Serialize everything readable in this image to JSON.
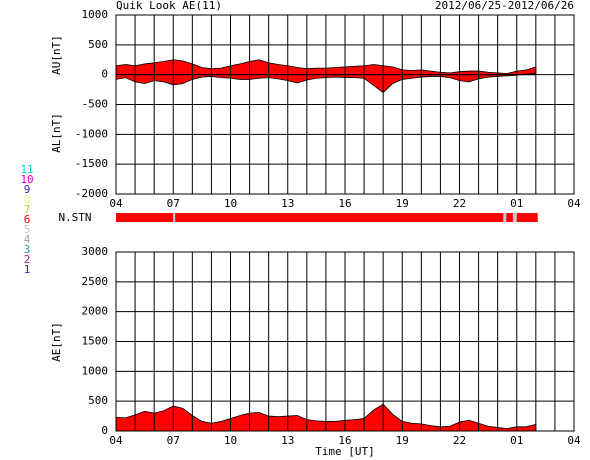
{
  "header": {
    "title": "Quik Look AE(11)",
    "date_range": "2012/06/25-2012/06/26"
  },
  "chart_data": [
    {
      "type": "area",
      "ylabel_upper": "AU[nT]",
      "ylabel_lower": "AL[nT]",
      "x": [
        0,
        0.5,
        1,
        1.5,
        2,
        2.5,
        3,
        3.5,
        4,
        4.5,
        5,
        5.5,
        6,
        6.5,
        7,
        7.5,
        8,
        8.5,
        9,
        9.5,
        10,
        10.5,
        11,
        11.5,
        12,
        12.5,
        13,
        13.5,
        14,
        14.5,
        15,
        15.5,
        16,
        16.5,
        17,
        17.5,
        18,
        18.5,
        19,
        19.5,
        20,
        20.5,
        21,
        21.5,
        22
      ],
      "series": [
        {
          "name": "AU",
          "color": "#ff0000",
          "values": [
            150,
            170,
            150,
            180,
            200,
            220,
            250,
            230,
            180,
            120,
            100,
            110,
            150,
            180,
            220,
            250,
            200,
            170,
            150,
            120,
            100,
            110,
            110,
            120,
            130,
            140,
            150,
            170,
            150,
            130,
            80,
            70,
            80,
            60,
            40,
            30,
            50,
            60,
            60,
            40,
            30,
            20,
            60,
            80,
            130
          ]
        },
        {
          "name": "AL",
          "color": "#ff0000",
          "values": [
            -80,
            -50,
            -120,
            -150,
            -100,
            -120,
            -170,
            -150,
            -80,
            -40,
            -30,
            -50,
            -60,
            -80,
            -80,
            -60,
            -50,
            -70,
            -100,
            -140,
            -90,
            -60,
            -50,
            -40,
            -50,
            -50,
            -60,
            -180,
            -300,
            -150,
            -80,
            -60,
            -40,
            -30,
            -30,
            -50,
            -100,
            -120,
            -70,
            -40,
            -30,
            -20,
            -10,
            10,
            20
          ]
        }
      ],
      "xlim": [
        0,
        24
      ],
      "xticks": [
        {
          "value": 0,
          "label": "04"
        },
        {
          "value": 3,
          "label": "07"
        },
        {
          "value": 6,
          "label": "10"
        },
        {
          "value": 9,
          "label": "13"
        },
        {
          "value": 12,
          "label": "16"
        },
        {
          "value": 15,
          "label": "19"
        },
        {
          "value": 18,
          "label": "22"
        },
        {
          "value": 21,
          "label": "01"
        },
        {
          "value": 24,
          "label": "04"
        }
      ],
      "xgrid": [
        0,
        1,
        2,
        3,
        4,
        5,
        6,
        7,
        8,
        9,
        10,
        11,
        12,
        13,
        14,
        15,
        16,
        17,
        18,
        19,
        20,
        21,
        22,
        23,
        24
      ],
      "ylim": [
        -2000,
        1000
      ],
      "yticks": [
        -2000,
        -1500,
        -1000,
        -500,
        0,
        500,
        1000
      ],
      "grid": true
    },
    {
      "type": "area",
      "ylabel": "AE[nT]",
      "xlabel": "Time [UT]",
      "x": [
        0,
        0.5,
        1,
        1.5,
        2,
        2.5,
        3,
        3.5,
        4,
        4.5,
        5,
        5.5,
        6,
        6.5,
        7,
        7.5,
        8,
        8.5,
        9,
        9.5,
        10,
        10.5,
        11,
        11.5,
        12,
        12.5,
        13,
        13.5,
        14,
        14.5,
        15,
        15.5,
        16,
        16.5,
        17,
        17.5,
        18,
        18.5,
        19,
        19.5,
        20,
        20.5,
        21,
        21.5,
        22
      ],
      "series": [
        {
          "name": "AE",
          "color": "#ff0000",
          "values": [
            230,
            220,
            270,
            330,
            300,
            340,
            420,
            380,
            260,
            160,
            130,
            160,
            210,
            260,
            300,
            310,
            250,
            240,
            250,
            260,
            190,
            170,
            160,
            160,
            180,
            190,
            210,
            350,
            450,
            280,
            160,
            130,
            120,
            90,
            70,
            80,
            150,
            180,
            130,
            80,
            60,
            40,
            70,
            70,
            110
          ]
        }
      ],
      "xlim": [
        0,
        24
      ],
      "xticks": [
        {
          "value": 0,
          "label": "04"
        },
        {
          "value": 3,
          "label": "07"
        },
        {
          "value": 6,
          "label": "10"
        },
        {
          "value": 9,
          "label": "13"
        },
        {
          "value": 12,
          "label": "16"
        },
        {
          "value": 15,
          "label": "19"
        },
        {
          "value": 18,
          "label": "22"
        },
        {
          "value": 21,
          "label": "01"
        },
        {
          "value": 24,
          "label": "04"
        }
      ],
      "xgrid": [
        0,
        1,
        2,
        3,
        4,
        5,
        6,
        7,
        8,
        9,
        10,
        11,
        12,
        13,
        14,
        15,
        16,
        17,
        18,
        19,
        20,
        21,
        22,
        23,
        24
      ],
      "ylim": [
        0,
        3000
      ],
      "yticks": [
        0,
        500,
        1000,
        1500,
        2000,
        2500,
        3000
      ],
      "grid": true
    }
  ],
  "station_count": {
    "label": "N.STN",
    "bins": [
      0,
      3.0,
      3.1,
      20.3,
      20.45,
      20.8,
      21.0,
      22.1
    ],
    "values": [
      6,
      5,
      6,
      5,
      6,
      5,
      6
    ]
  },
  "legend": {
    "counts": [
      11,
      10,
      9,
      8,
      7,
      6,
      5,
      4,
      3,
      2,
      1
    ],
    "colors": [
      "#00d8d8",
      "#e000e0",
      "#2828c0",
      "#f0f088",
      "#a0e040",
      "#ff0000",
      "#c8c8c8",
      "#a0a0a0",
      "#20a0a0",
      "#a020a0",
      "#2828c8"
    ]
  }
}
